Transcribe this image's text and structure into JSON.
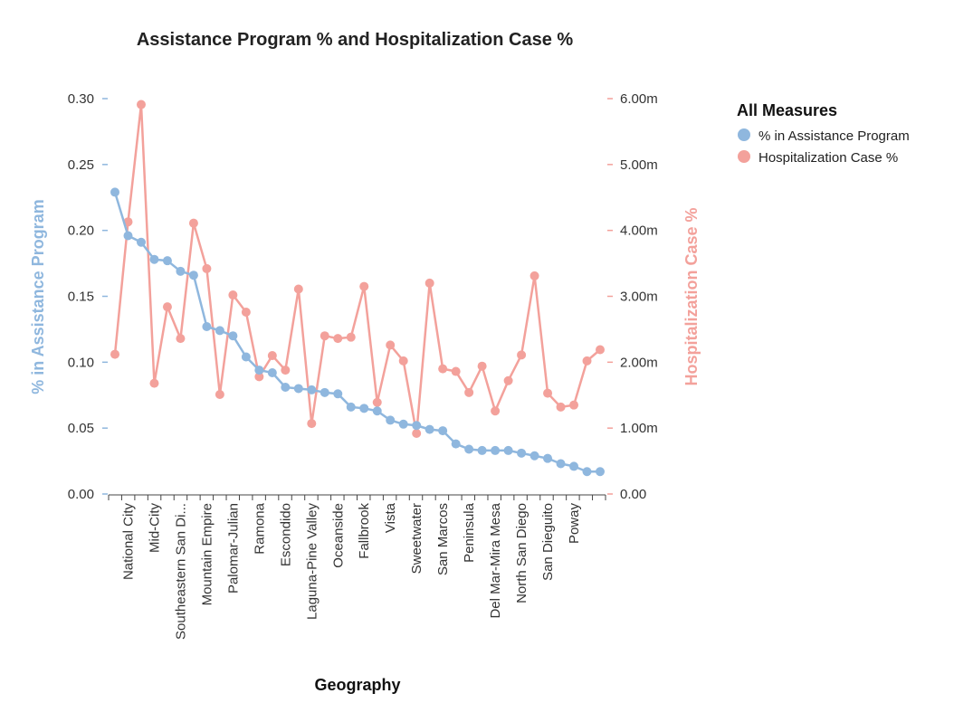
{
  "chart_data": {
    "type": "line",
    "title": "Assistance Program %  and Hospitalization Case %",
    "xlabel": "Geography",
    "ylabel_left": "% in Assistance Program",
    "ylabel_right": "Hospitalization Case %",
    "legend_title": "All Measures",
    "legend_position": "top-right",
    "grid": false,
    "colors": {
      "left": "#8fb7de",
      "right": "#f3a19b"
    },
    "y_left": {
      "min": 0,
      "max": 0.3,
      "ticks": [
        "0.00",
        "0.05",
        "0.10",
        "0.15",
        "0.20",
        "0.25",
        "0.30"
      ]
    },
    "y_right": {
      "min": 0,
      "max": 0.006,
      "ticks": [
        "0.00",
        "1.00m",
        "2.00m",
        "3.00m",
        "4.00m",
        "5.00m",
        "6.00m"
      ]
    },
    "categories": [
      "",
      "National City",
      "",
      "Mid-City",
      "",
      "Southeastern San Di...",
      "",
      "Mountain Empire",
      "",
      "Palomar-Julian",
      "",
      "Ramona",
      "",
      "Escondido",
      "",
      "Laguna-Pine Valley",
      "",
      "Oceanside",
      "",
      "Fallbrook",
      "",
      "Vista",
      "",
      "Sweetwater",
      "",
      "San Marcos",
      "",
      "Peninsula",
      "",
      "Del Mar-Mira Mesa",
      "",
      "North San Diego",
      "",
      "San Dieguito",
      "",
      "Poway",
      "",
      ""
    ],
    "series": [
      {
        "name": "% in Assistance Program",
        "axis": "left",
        "values": [
          0.229,
          0.196,
          0.191,
          0.178,
          0.177,
          0.169,
          0.166,
          0.127,
          0.124,
          0.12,
          0.104,
          0.094,
          0.092,
          0.081,
          0.08,
          0.079,
          0.077,
          0.076,
          0.066,
          0.065,
          0.063,
          0.056,
          0.053,
          0.052,
          0.049,
          0.048,
          0.038,
          0.034,
          0.033,
          0.033,
          0.033,
          0.031,
          0.029,
          0.027,
          0.023,
          0.021,
          0.017,
          0.017
        ]
      },
      {
        "name": "Hospitalization Case %",
        "axis": "right",
        "values": [
          0.00212,
          0.00413,
          0.00591,
          0.00168,
          0.00284,
          0.00236,
          0.00411,
          0.00342,
          0.00151,
          0.00302,
          0.00276,
          0.00178,
          0.0021,
          0.00188,
          0.00311,
          0.00107,
          0.0024,
          0.00236,
          0.00238,
          0.00315,
          0.00139,
          0.00226,
          0.00202,
          0.00092,
          0.0032,
          0.0019,
          0.00186,
          0.00154,
          0.00194,
          0.00126,
          0.00172,
          0.00211,
          0.00331,
          0.00153,
          0.00132,
          0.00135,
          0.00202,
          0.00219
        ]
      }
    ]
  }
}
